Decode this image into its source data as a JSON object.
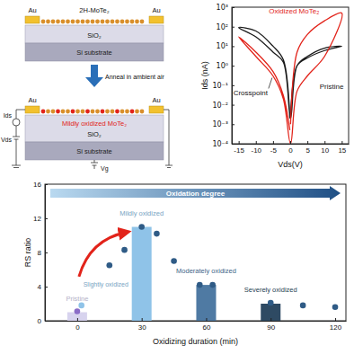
{
  "diagram": {
    "top_device": {
      "film": "2H-MoTe₂",
      "electrode": "Au",
      "dielectric": "SiO₂",
      "substrate": "Si substrate"
    },
    "process": "Anneal in ambient air",
    "bottom_device": {
      "film": "Mildly oxidized MoTe₂",
      "electrode": "Au",
      "dielectric": "SiO₂",
      "substrate": "Si substrate"
    },
    "circuit": {
      "current": "Ids",
      "drain_voltage": "Vds",
      "gate_voltage": "Vg"
    }
  },
  "chart_data": [
    {
      "type": "line",
      "x_label": "Vds(V)",
      "y_label": "Ids (nA)",
      "log": "y",
      "xlim": [
        -17,
        17
      ],
      "xticks": [
        -15,
        -10,
        -5,
        0,
        5,
        10,
        15
      ],
      "ylim": [
        0.0001,
        1000
      ],
      "yticks": [
        {
          "value": 0.0001,
          "label": "10⁻⁴"
        },
        {
          "value": 0.001,
          "label": "10⁻³"
        },
        {
          "value": 0.01,
          "label": "10⁻²"
        },
        {
          "value": 0.1,
          "label": "10⁻¹"
        },
        {
          "value": 1,
          "label": "10⁰"
        },
        {
          "value": 10,
          "label": "10¹"
        },
        {
          "value": 100,
          "label": "10²"
        },
        {
          "value": 1000,
          "label": "10³"
        }
      ],
      "series": [
        {
          "name": "Pristine",
          "color": "#1a1a1a",
          "x": [
            0.1,
            2,
            5,
            10,
            15,
            10,
            5,
            2,
            0.1,
            -2,
            -5,
            -10,
            -15,
            -10,
            -5,
            -2,
            -0.1
          ],
          "values": [
            0.002,
            1,
            2.5,
            6,
            10,
            8,
            3,
            1,
            0.002,
            1.5,
            5,
            30,
            90,
            60,
            10,
            2,
            0.002
          ]
        },
        {
          "name": "Oxidized MoTe₂",
          "color": "#e2231a",
          "x": [
            0.1,
            2,
            5,
            10,
            15,
            10,
            5,
            2,
            0.1,
            -2,
            -5,
            -10,
            -15,
            -10,
            -5,
            -2,
            -0.1
          ],
          "values": [
            0.001,
            5,
            40,
            200,
            500,
            3,
            0.3,
            0.05,
            0.0001,
            0.02,
            0.3,
            3,
            30,
            5,
            0.5,
            0.03,
            0.0005
          ]
        }
      ],
      "annotations": [
        "Crosspoint"
      ]
    },
    {
      "type": "bar",
      "x_label": "Oxidizing duration (min)",
      "y_label": "RS ratio",
      "xlim": [
        -15,
        125
      ],
      "xticks": [
        0,
        30,
        60,
        90,
        120
      ],
      "ylim": [
        0,
        16
      ],
      "yticks": [
        0,
        4,
        8,
        12,
        16
      ],
      "series": [
        {
          "type": "bar",
          "x": [
            0,
            30,
            60,
            90
          ],
          "values": [
            1,
            11,
            4.2,
            2
          ],
          "colors": [
            "#d7d3ee",
            "#8fc3e8",
            "#4f7aa3",
            "#2e4a63"
          ],
          "labels": [
            "Pristine",
            "Mildly oxidized",
            "Moderately oxidized",
            "Severely oxidized"
          ]
        },
        {
          "type": "scatter",
          "marker": "circle",
          "x": [
            0,
            2,
            15,
            22,
            30,
            37,
            45,
            57,
            63,
            90,
            105,
            120
          ],
          "values": [
            1.1,
            1.8,
            6.5,
            8.3,
            11,
            10.2,
            7,
            4.2,
            4.2,
            2.1,
            1.8,
            1.6
          ],
          "colors": [
            "#8b6cc7",
            "#8fc3e8",
            "#2f5b86",
            "#2f5b86",
            "#2f5b86",
            "#2f5b86",
            "#2f5b86",
            "#2f5b86",
            "#2f5b86",
            "#2f5b86",
            "#2f5b86",
            "#2f5b86"
          ]
        }
      ],
      "annotations": [
        "Slightly oxidized",
        "Oxidation degree"
      ]
    }
  ]
}
